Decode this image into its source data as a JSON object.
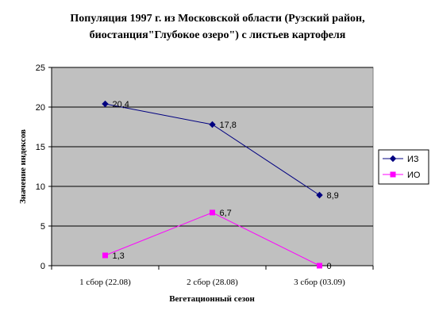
{
  "chart_data": {
    "type": "line",
    "title_line1": "Популяция 1997 г. из Московской области (Рузский район,",
    "title_line2": "биостанция\"Глубокое озеро\")  с листьев картофеля",
    "xlabel": "Вегетационный сезон",
    "ylabel": "Значение индексов",
    "categories": [
      "1 сбор (22.08)",
      "2 сбор (28.08)",
      "3 сбор (03.09)"
    ],
    "ylim": [
      0,
      25
    ],
    "yticks": [
      0,
      5,
      10,
      15,
      20,
      25
    ],
    "grid": true,
    "legend_position": "right",
    "plot_background": "#c0c0c0",
    "series": [
      {
        "name": "ИЗ",
        "values": [
          20.4,
          17.8,
          8.9
        ],
        "labels": [
          "20,4",
          "17,8",
          "8,9"
        ],
        "color": "#000080",
        "marker": "diamond"
      },
      {
        "name": "ИО",
        "values": [
          1.3,
          6.7,
          0
        ],
        "labels": [
          "1,3",
          "6,7",
          "0"
        ],
        "color": "#ff00ff",
        "marker": "square"
      }
    ]
  }
}
